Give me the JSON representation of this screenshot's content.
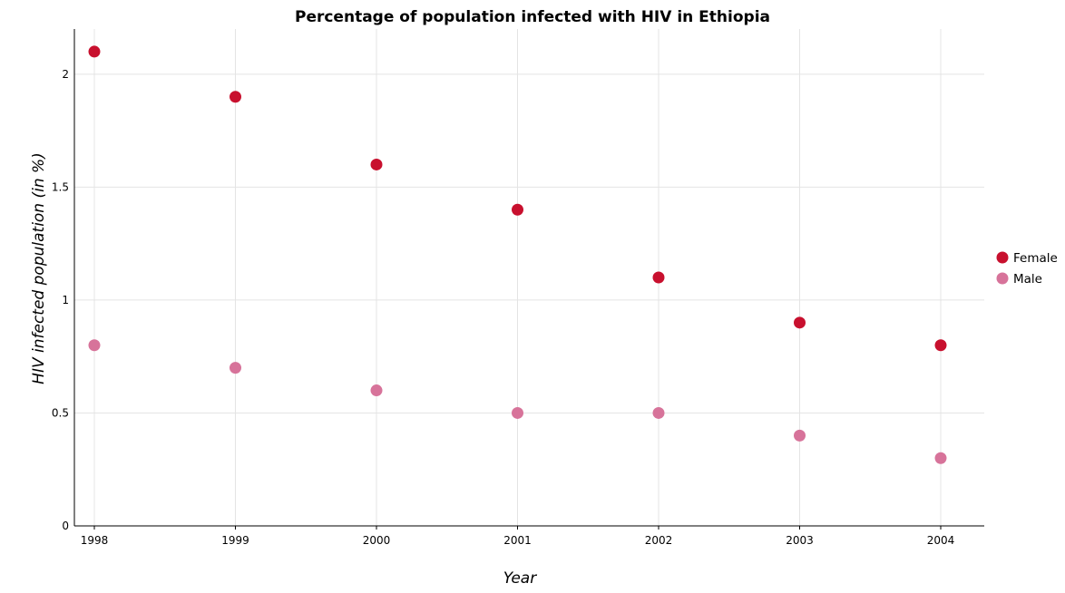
{
  "chart_data": {
    "type": "scatter",
    "title": "Percentage of population infected with HIV in Ethiopia",
    "xlabel": "Year",
    "ylabel": "HIV infected population (in %)",
    "categories": [
      "1998",
      "1999",
      "2000",
      "2001",
      "2002",
      "2003",
      "2004"
    ],
    "y_ticks": [
      "0",
      "0.5",
      "1",
      "1.5",
      "2"
    ],
    "ylim": [
      0,
      2.2
    ],
    "grid": true,
    "legend_position": "right",
    "series": [
      {
        "name": "Female",
        "color": "#c8102e",
        "values": [
          2.1,
          1.9,
          1.6,
          1.4,
          1.1,
          0.9,
          0.8
        ]
      },
      {
        "name": "Male",
        "color": "#d7739a",
        "values": [
          0.8,
          0.7,
          0.6,
          0.5,
          0.5,
          0.4,
          0.3
        ]
      }
    ]
  }
}
